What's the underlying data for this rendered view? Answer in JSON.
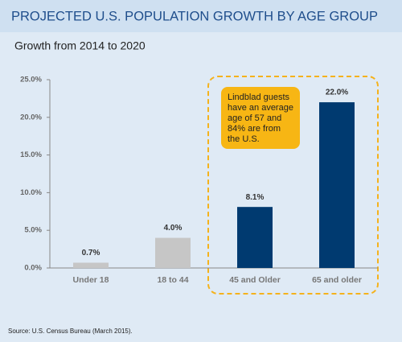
{
  "chart_data": {
    "type": "bar",
    "title": "PROJECTED U.S. POPULATION GROWTH BY AGE GROUP",
    "subtitle": "Growth from 2014 to 2020",
    "categories": [
      "Under 18",
      "18 to 44",
      "45 and Older",
      "65 and older"
    ],
    "values": [
      0.7,
      4.0,
      8.1,
      22.0
    ],
    "value_labels": [
      "0.7%",
      "4.0%",
      "8.1%",
      "22.0%"
    ],
    "colors": [
      "#c6c6c6",
      "#c6c6c6",
      "#003a70",
      "#003a70"
    ],
    "ylim": [
      0,
      25
    ],
    "yticks": [
      {
        "value": 0,
        "label": "0.0%"
      },
      {
        "value": 5,
        "label": "5.0%"
      },
      {
        "value": 10,
        "label": "10.0%"
      },
      {
        "value": 15,
        "label": "15.0%"
      },
      {
        "value": 20,
        "label": "20.0%"
      },
      {
        "value": 25,
        "label": "25.0%"
      }
    ],
    "annotation": [
      "Lindblad guests",
      "have an average",
      "age of 57 and",
      "84% are from",
      "the U.S."
    ],
    "source": "Source: U.S. Census Bureau (March 2015)."
  }
}
